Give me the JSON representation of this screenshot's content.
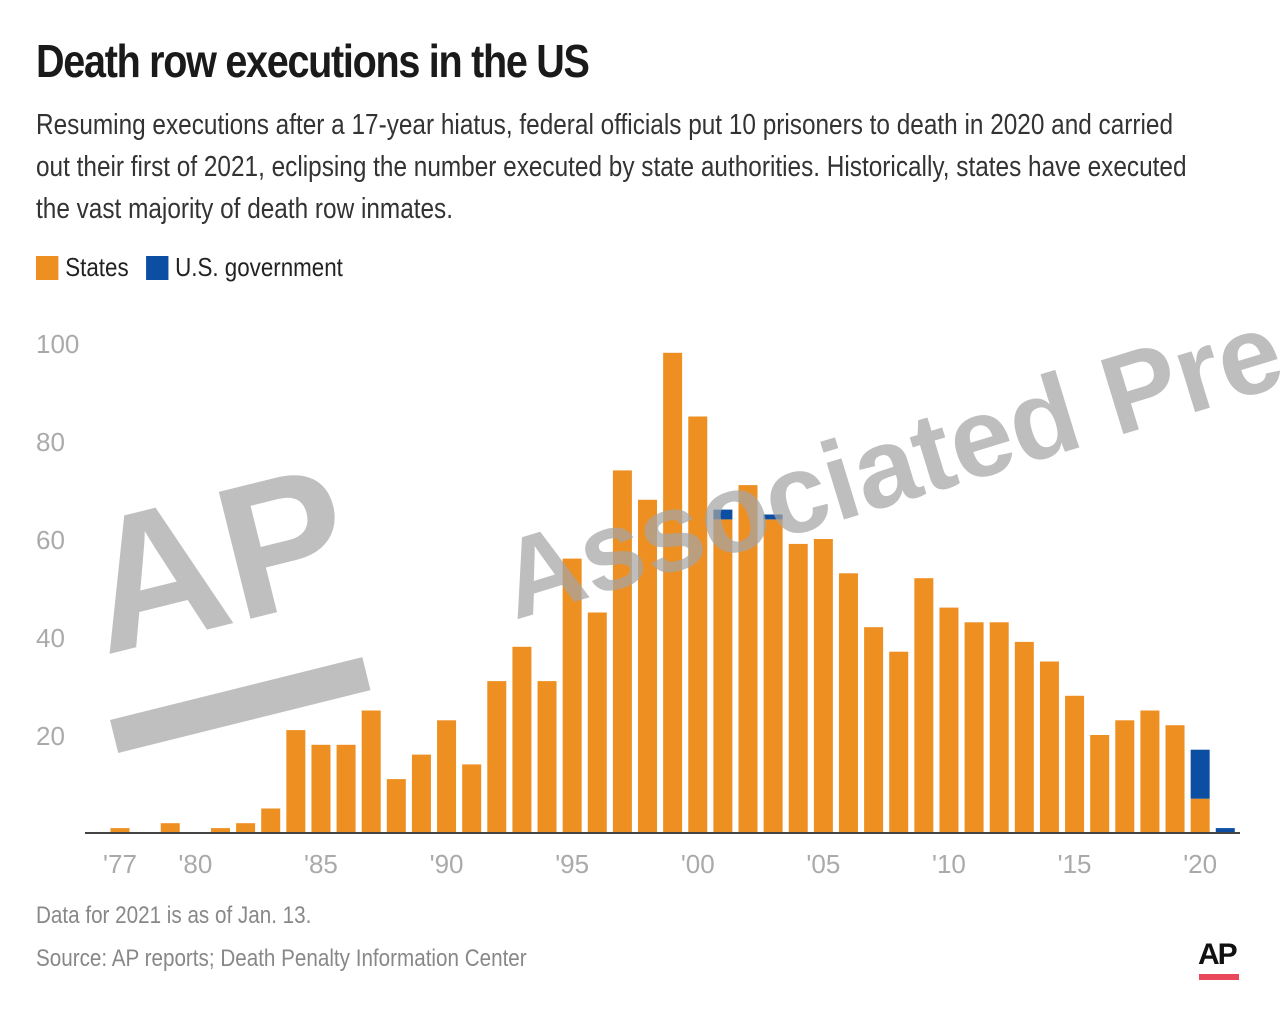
{
  "title": "Death row executions in the US",
  "subtitle": "Resuming executions after a 17-year hiatus, federal officials put 10 prisoners to death in 2020 and carried out their first of 2021, eclipsing the number executed by state authorities. Historically, states have executed the vast majority of death row inmates.",
  "note": "Data for 2021 is as of Jan. 13.",
  "source": "Source: AP reports; Death Penalty Information Center",
  "logo": "AP",
  "watermark": {
    "logo": "AP",
    "text": "Associated Press"
  },
  "colors": {
    "states": "#ee8f22",
    "federal": "#0b4ea2",
    "axis": "#444444",
    "tick": "#aaaaaa",
    "logo_bar": "#e8485a"
  },
  "chart_data": {
    "type": "bar",
    "stacked": true,
    "title": "Death row executions in the US",
    "xlabel": "",
    "ylabel": "",
    "ylim": [
      0,
      100
    ],
    "yticks": [
      "20",
      "40",
      "60",
      "80",
      "100"
    ],
    "xticks": [
      {
        "year": 1977,
        "label": "'77"
      },
      {
        "year": 1980,
        "label": "'80"
      },
      {
        "year": 1985,
        "label": "'85"
      },
      {
        "year": 1990,
        "label": "'90"
      },
      {
        "year": 1995,
        "label": "'95"
      },
      {
        "year": 2000,
        "label": "'00"
      },
      {
        "year": 2005,
        "label": "'05"
      },
      {
        "year": 2010,
        "label": "'10"
      },
      {
        "year": 2015,
        "label": "'15"
      },
      {
        "year": 2020,
        "label": "'20"
      }
    ],
    "grid": false,
    "legend_placement": "top-left",
    "categories": [
      1977,
      1978,
      1979,
      1980,
      1981,
      1982,
      1983,
      1984,
      1985,
      1986,
      1987,
      1988,
      1989,
      1990,
      1991,
      1992,
      1993,
      1994,
      1995,
      1996,
      1997,
      1998,
      1999,
      2000,
      2001,
      2002,
      2003,
      2004,
      2005,
      2006,
      2007,
      2008,
      2009,
      2010,
      2011,
      2012,
      2013,
      2014,
      2015,
      2016,
      2017,
      2018,
      2019,
      2020,
      2021
    ],
    "series": [
      {
        "name": "States",
        "values": [
          1,
          0,
          2,
          0,
          1,
          2,
          5,
          21,
          18,
          18,
          25,
          11,
          16,
          23,
          14,
          31,
          38,
          31,
          56,
          45,
          74,
          68,
          98,
          85,
          64,
          71,
          64,
          59,
          60,
          53,
          42,
          37,
          52,
          46,
          43,
          43,
          39,
          35,
          28,
          20,
          23,
          25,
          22,
          7,
          0
        ]
      },
      {
        "name": "U.S. government",
        "values": [
          0,
          0,
          0,
          0,
          0,
          0,
          0,
          0,
          0,
          0,
          0,
          0,
          0,
          0,
          0,
          0,
          0,
          0,
          0,
          0,
          0,
          0,
          0,
          0,
          2,
          0,
          1,
          0,
          0,
          0,
          0,
          0,
          0,
          0,
          0,
          0,
          0,
          0,
          0,
          0,
          0,
          0,
          0,
          10,
          1
        ]
      }
    ]
  }
}
